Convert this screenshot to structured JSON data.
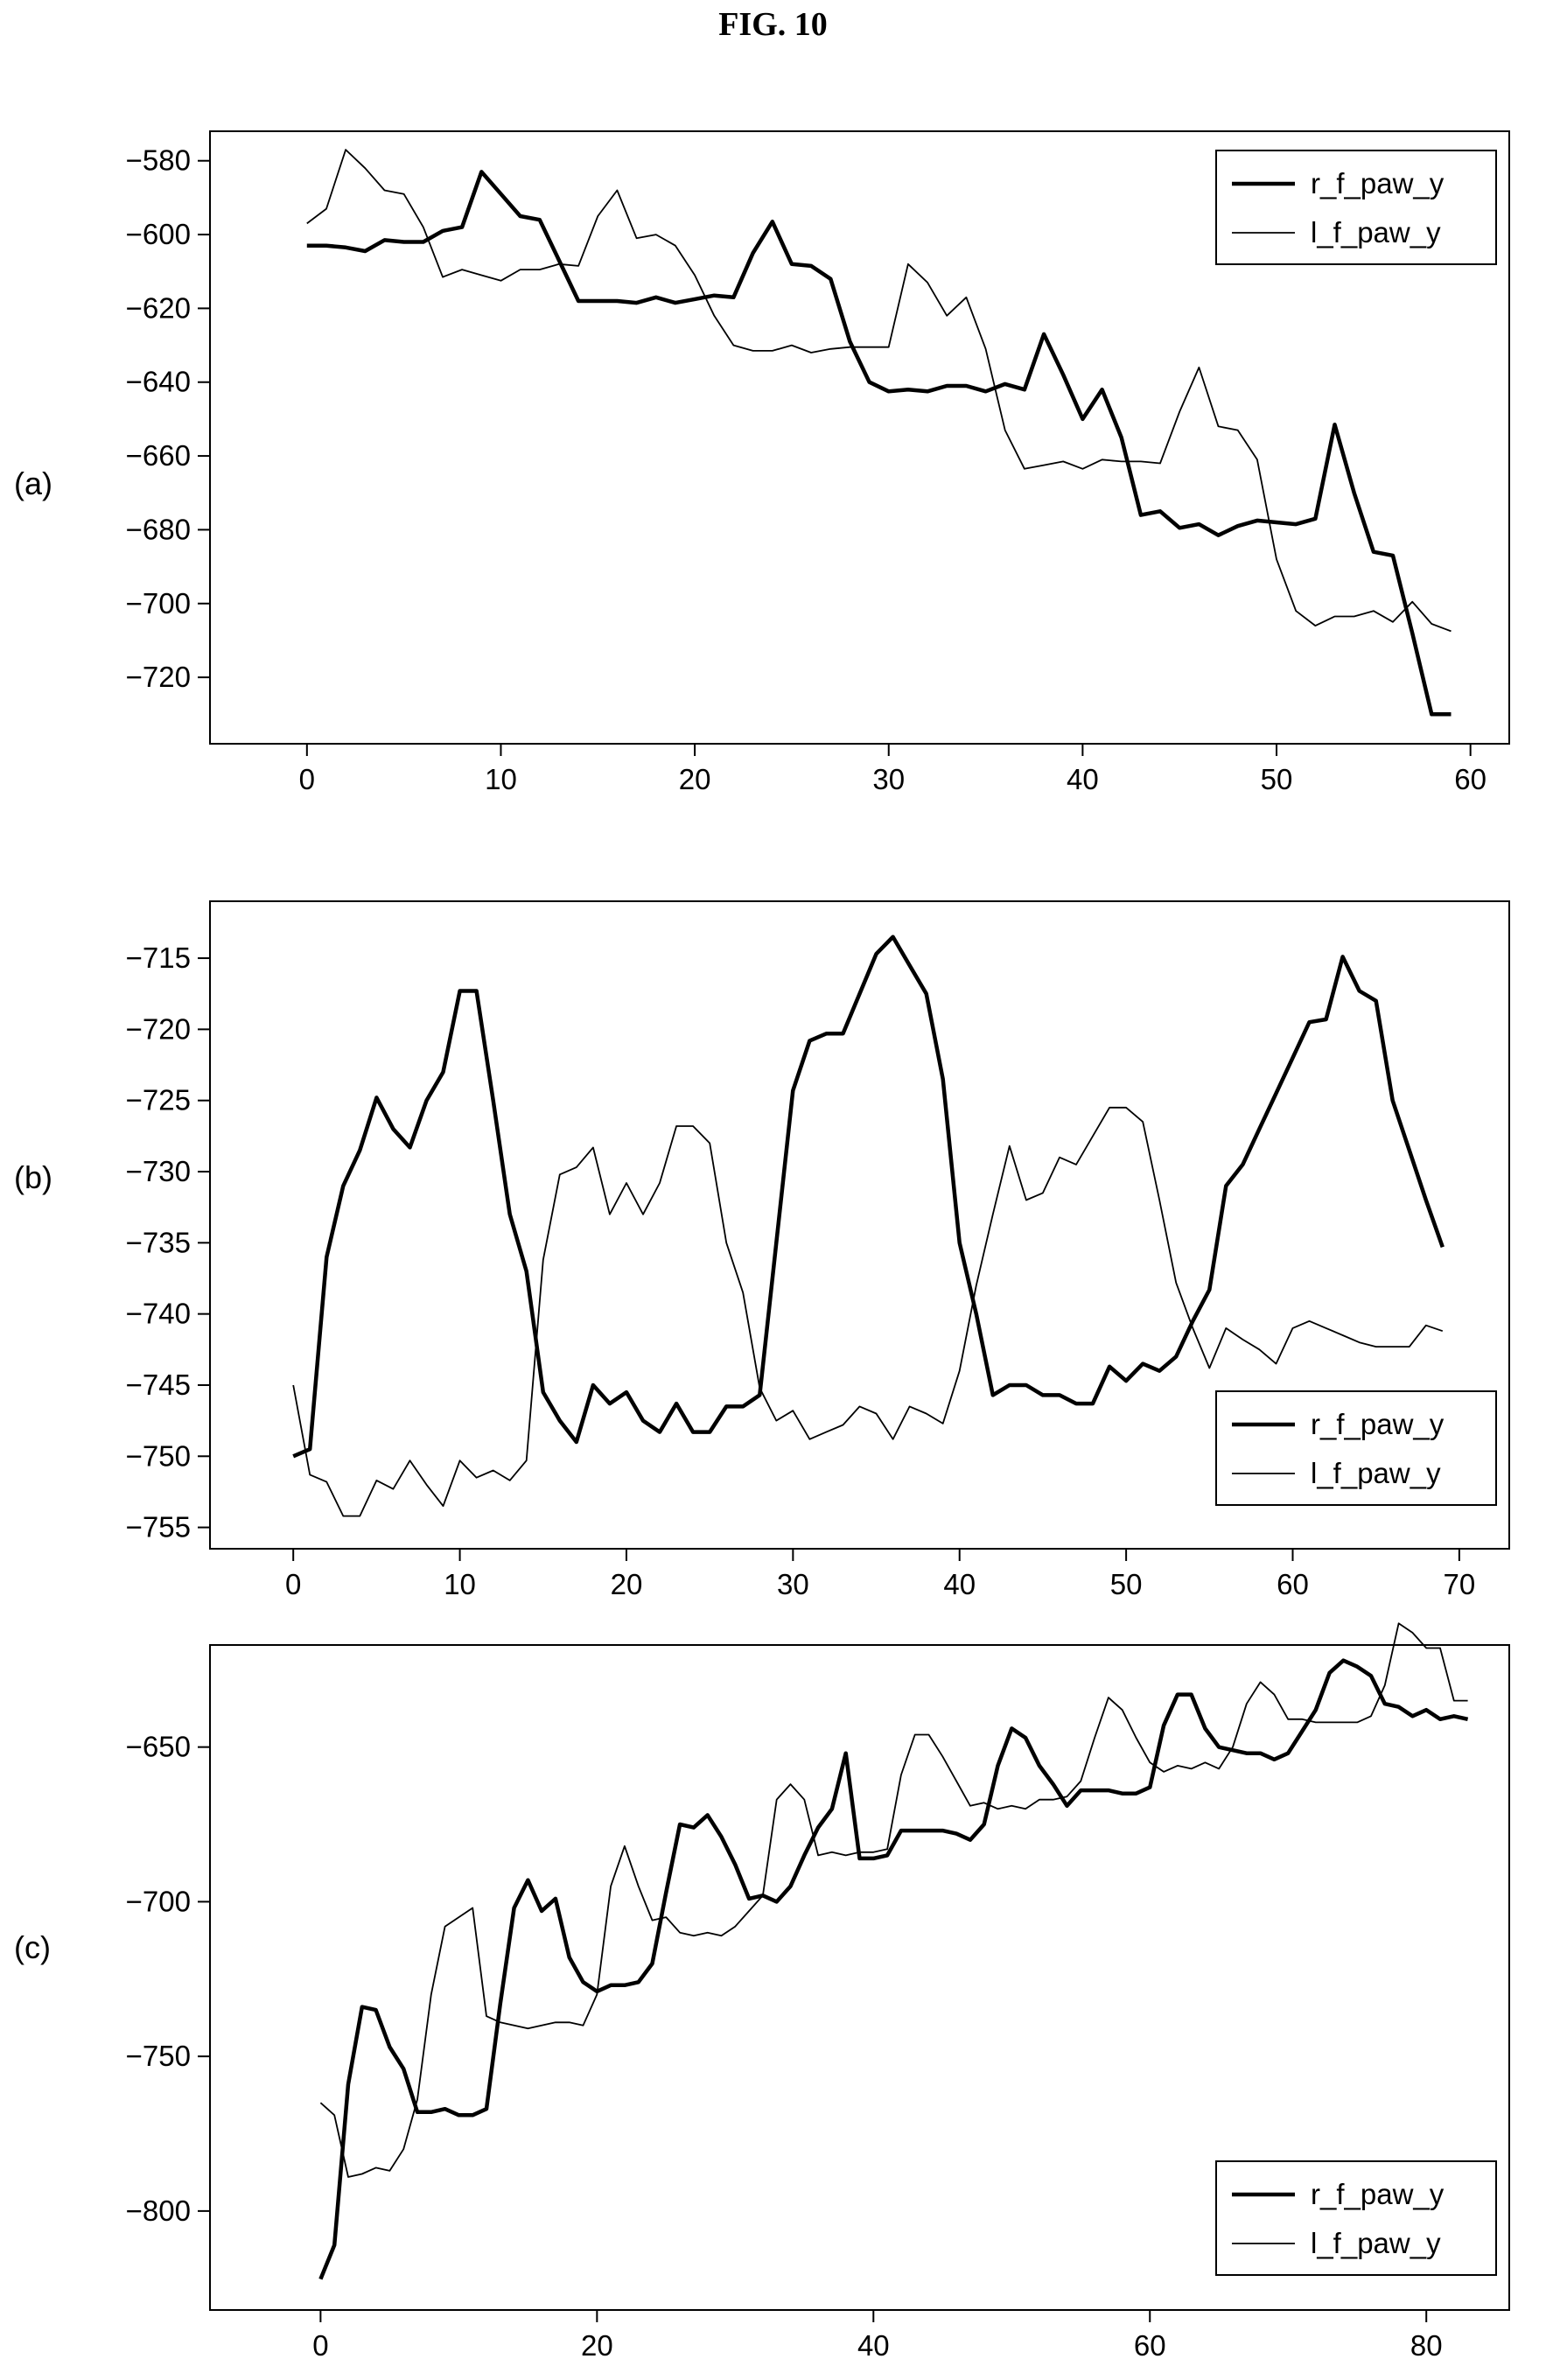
{
  "figure": {
    "title": "FIG. 10"
  },
  "chart_data": [
    {
      "panel": "(a)",
      "type": "line",
      "xlim": [
        -5,
        62
      ],
      "ylim": [
        -738,
        -572
      ],
      "xticks": [
        0,
        10,
        20,
        30,
        40,
        50,
        60
      ],
      "yticks": [
        -720,
        -700,
        -680,
        -660,
        -640,
        -620,
        -600,
        -580
      ],
      "legend": "top-right",
      "series": [
        {
          "name": "r_f_paw_y",
          "style": "thick",
          "x": [
            0,
            1,
            2,
            3,
            4,
            5,
            6,
            7,
            8,
            9,
            10,
            11,
            12,
            13,
            14,
            15,
            16,
            17,
            18,
            19,
            20,
            21,
            22,
            23,
            24,
            25,
            26,
            27,
            28,
            29,
            30,
            31,
            32,
            33,
            34,
            35,
            36,
            37,
            38,
            39,
            40,
            41,
            42,
            43,
            44,
            45,
            46,
            47,
            48,
            49,
            50,
            51,
            52,
            53,
            54,
            55,
            56,
            57,
            58,
            59
          ],
          "y": [
            -603,
            -603,
            -603.5,
            -604.5,
            -601.5,
            -602,
            -602,
            -599,
            -598,
            -583,
            -589,
            -595,
            -596,
            -607,
            -618,
            -618,
            -618,
            -618.5,
            -617,
            -618.5,
            -617.5,
            -616.5,
            -617,
            -605,
            -596.5,
            -608,
            -608.5,
            -612,
            -629,
            -640,
            -642.5,
            -642,
            -642.5,
            -641,
            -641,
            -642.5,
            -640.5,
            -642,
            -627,
            -638,
            -650,
            -642,
            -655,
            -676,
            -675,
            -679.5,
            -678.5,
            -681.5,
            -679,
            -677.5,
            -678,
            -678.5,
            -677,
            -651.5,
            -670,
            -686,
            -687,
            -708,
            -730,
            -730
          ]
        },
        {
          "name": "l_f_paw_y",
          "style": "thin",
          "x": [
            0,
            1,
            2,
            3,
            4,
            5,
            6,
            7,
            8,
            9,
            10,
            11,
            12,
            13,
            14,
            15,
            16,
            17,
            18,
            19,
            20,
            21,
            22,
            23,
            24,
            25,
            26,
            27,
            28,
            29,
            30,
            31,
            32,
            33,
            34,
            35,
            36,
            37,
            38,
            39,
            40,
            41,
            42,
            43,
            44,
            45,
            46,
            47,
            48,
            49,
            50,
            51,
            52,
            53,
            54,
            55,
            56,
            57,
            58,
            59
          ],
          "y": [
            -597,
            -593,
            -577,
            -582,
            -588,
            -589,
            -598,
            -611.5,
            -609.5,
            -611,
            -612.5,
            -609.5,
            -609.5,
            -608,
            -608.5,
            -595,
            -588,
            -601,
            -600,
            -603,
            -611,
            -622,
            -630,
            -631.5,
            -631.5,
            -630,
            -632,
            -631,
            -630.5,
            -630.5,
            -630.5,
            -608,
            -613,
            -622,
            -617,
            -631,
            -653,
            -663.5,
            -662.5,
            -661.5,
            -663.5,
            -661,
            -661.5,
            -661.5,
            -662,
            -648,
            -636,
            -652,
            -653,
            -661,
            -688,
            -702,
            -706,
            -703.5,
            -703.5,
            -702,
            -705,
            -699.5,
            -705.5,
            -707.5
          ]
        }
      ]
    },
    {
      "panel": "(b)",
      "type": "line",
      "xlim": [
        -5,
        73
      ],
      "ylim": [
        -756.5,
        -711
      ],
      "xticks": [
        0,
        10,
        20,
        30,
        40,
        50,
        60,
        70
      ],
      "yticks": [
        -755,
        -750,
        -745,
        -740,
        -735,
        -730,
        -725,
        -720,
        -715
      ],
      "legend": "bottom-right",
      "series": [
        {
          "name": "r_f_paw_y",
          "style": "thick",
          "x": [
            0,
            1,
            2,
            3,
            4,
            5,
            6,
            7,
            8,
            9,
            10,
            11,
            12,
            13,
            14,
            15,
            16,
            17,
            18,
            19,
            20,
            21,
            22,
            23,
            24,
            25,
            26,
            27,
            28,
            29,
            30,
            31,
            32,
            33,
            34,
            35,
            36,
            37,
            38,
            39,
            40,
            41,
            42,
            43,
            44,
            45,
            46,
            47,
            48,
            49,
            50,
            51,
            52,
            53,
            54,
            55,
            56,
            57,
            58,
            59,
            60,
            61,
            62,
            63,
            64,
            65,
            66,
            67,
            68,
            69
          ],
          "y": [
            -750,
            -749.5,
            -736,
            -731,
            -728.5,
            -724.8,
            -727,
            -728.3,
            -725,
            -723,
            -717.3,
            -717.3,
            -725,
            -733,
            -737,
            -745.5,
            -747.5,
            -749,
            -745,
            -746.3,
            -745.5,
            -747.5,
            -748.3,
            -746.3,
            -748.3,
            -748.3,
            -746.5,
            -746.5,
            -745.7,
            -735,
            -724.3,
            -720.8,
            -720.3,
            -720.3,
            -717.5,
            -714.7,
            -713.5,
            -715.5,
            -717.5,
            -723.5,
            -735,
            -740,
            -745.7,
            -745,
            -745,
            -745.7,
            -745.7,
            -746.3,
            -746.3,
            -743.7,
            -744.7,
            -743.5,
            -744,
            -743,
            -740.5,
            -738.3,
            -731,
            -729.5,
            -727,
            -724.5,
            -722,
            -719.5,
            -719.3,
            -714.9,
            -717.3,
            -718,
            -725,
            -728.5,
            -732,
            -735.3
          ]
        },
        {
          "name": "l_f_paw_y",
          "style": "thin",
          "x": [
            0,
            1,
            2,
            3,
            4,
            5,
            6,
            7,
            8,
            9,
            10,
            11,
            12,
            13,
            14,
            15,
            16,
            17,
            18,
            19,
            20,
            21,
            22,
            23,
            24,
            25,
            26,
            27,
            28,
            29,
            30,
            31,
            32,
            33,
            34,
            35,
            36,
            37,
            38,
            39,
            40,
            41,
            42,
            43,
            44,
            45,
            46,
            47,
            48,
            49,
            50,
            51,
            52,
            53,
            54,
            55,
            56,
            57,
            58,
            59,
            60,
            61,
            62,
            63,
            64,
            65,
            66,
            67,
            68,
            69
          ],
          "y": [
            -745,
            -751.3,
            -751.8,
            -754.2,
            -754.2,
            -751.7,
            -752.3,
            -750.3,
            -752,
            -753.5,
            -750.3,
            -751.5,
            -751,
            -751.7,
            -750.3,
            -736.2,
            -730.2,
            -729.7,
            -728.3,
            -733,
            -730.8,
            -733,
            -730.8,
            -726.8,
            -726.8,
            -728,
            -735,
            -738.5,
            -745.2,
            -747.5,
            -746.8,
            -748.8,
            -748.3,
            -747.8,
            -746.5,
            -747,
            -748.8,
            -746.5,
            -747,
            -747.7,
            -744,
            -738,
            -733,
            -728.2,
            -732,
            -731.5,
            -729,
            -729.5,
            -727.5,
            -725.5,
            -725.5,
            -726.5,
            -732,
            -737.8,
            -741,
            -743.8,
            -741,
            -741.8,
            -742.5,
            -743.5,
            -741,
            -740.5,
            -741,
            -741.5,
            -742,
            -742.3,
            -742.3,
            -742.3,
            -740.8,
            -741.2
          ]
        }
      ]
    },
    {
      "panel": "(c)",
      "type": "line",
      "xlim": [
        -8,
        86
      ],
      "ylim": [
        -832,
        -617
      ],
      "xticks": [
        0,
        20,
        40,
        60,
        80
      ],
      "yticks": [
        -800,
        -750,
        -700,
        -650
      ],
      "legend": "bottom-right",
      "series": [
        {
          "name": "r_f_paw_y",
          "style": "thick",
          "x": [
            0,
            1,
            2,
            3,
            4,
            5,
            6,
            7,
            8,
            9,
            10,
            11,
            12,
            13,
            14,
            15,
            16,
            17,
            18,
            19,
            20,
            21,
            22,
            23,
            24,
            25,
            26,
            27,
            28,
            29,
            30,
            31,
            32,
            33,
            34,
            35,
            36,
            37,
            38,
            39,
            40,
            41,
            42,
            43,
            44,
            45,
            46,
            47,
            48,
            49,
            50,
            51,
            52,
            53,
            54,
            55,
            56,
            57,
            58,
            59,
            60,
            61,
            62,
            63,
            64,
            65,
            66,
            67,
            68,
            69,
            70,
            71,
            72,
            73,
            74,
            75,
            76,
            77,
            78,
            79,
            80,
            81,
            82,
            83
          ],
          "y": [
            -822,
            -811,
            -759,
            -734,
            -735,
            -747,
            -754,
            -768,
            -768,
            -767,
            -769,
            -769,
            -767,
            -733,
            -702,
            -693,
            -703,
            -699,
            -718,
            -726,
            -729,
            -727,
            -727,
            -726,
            -720,
            -697,
            -675,
            -676,
            -672,
            -679,
            -688,
            -699,
            -698,
            -700,
            -695,
            -685,
            -676,
            -670,
            -652,
            -686,
            -686,
            -685,
            -677,
            -677,
            -677,
            -677,
            -678,
            -680,
            -675,
            -656,
            -644,
            -647,
            -656,
            -662,
            -669,
            -664,
            -664,
            -664,
            -665,
            -665,
            -663,
            -643,
            -633,
            -633,
            -644,
            -650,
            -651,
            -652,
            -652,
            -654,
            -652,
            -645,
            -638,
            -626,
            -622,
            -624,
            -627,
            -636,
            -637,
            -640,
            -638,
            -641,
            -640,
            -641
          ]
        },
        {
          "name": "l_f_paw_y",
          "style": "thin",
          "x": [
            0,
            1,
            2,
            3,
            4,
            5,
            6,
            7,
            8,
            9,
            10,
            11,
            12,
            13,
            14,
            15,
            16,
            17,
            18,
            19,
            20,
            21,
            22,
            23,
            24,
            25,
            26,
            27,
            28,
            29,
            30,
            31,
            32,
            33,
            34,
            35,
            36,
            37,
            38,
            39,
            40,
            41,
            42,
            43,
            44,
            45,
            46,
            47,
            48,
            49,
            50,
            51,
            52,
            53,
            54,
            55,
            56,
            57,
            58,
            59,
            60,
            61,
            62,
            63,
            64,
            65,
            66,
            67,
            68,
            69,
            70,
            71,
            72,
            73,
            74,
            75,
            76,
            77,
            78,
            79,
            80,
            81,
            82,
            83
          ],
          "y": [
            -765,
            -769,
            -789,
            -788,
            -786,
            -787,
            -780,
            -764,
            -730,
            -708,
            -705,
            -702,
            -737,
            -739,
            -740,
            -741,
            -740,
            -739,
            -739,
            -740,
            -730,
            -695,
            -682,
            -695,
            -706,
            -705,
            -710,
            -711,
            -710,
            -711,
            -708,
            -703,
            -698,
            -667,
            -662,
            -667,
            -685,
            -684,
            -685,
            -684,
            -684,
            -683,
            -659,
            -646,
            -646,
            -653,
            -661,
            -669,
            -668,
            -670,
            -669,
            -670,
            -667,
            -667,
            -666,
            -661,
            -647,
            -634,
            -638,
            -647,
            -655,
            -658,
            -656,
            -657,
            -655,
            -657,
            -650,
            -636,
            -629,
            -633,
            -641,
            -641,
            -642,
            -642,
            -642,
            -642,
            -640,
            -630,
            -610,
            -613,
            -618,
            -618,
            -635,
            -635
          ]
        }
      ]
    }
  ]
}
